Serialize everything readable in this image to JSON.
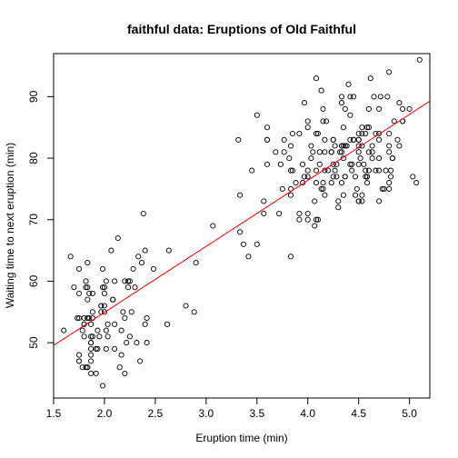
{
  "chart_data": {
    "type": "scatter",
    "title": "faithful data: Eruptions of Old Faithful",
    "xlabel": "Eruption time (min)",
    "ylabel": "Waiting time to next eruption (min)",
    "xlim": [
      1.5,
      5.2
    ],
    "ylim": [
      41,
      97
    ],
    "x_ticks": [
      "1.5",
      "2.0",
      "2.5",
      "3.0",
      "3.5",
      "4.0",
      "4.5",
      "5.0"
    ],
    "y_ticks": [
      "50",
      "60",
      "70",
      "80",
      "90"
    ],
    "grid": false,
    "point_color": "#000000",
    "line_color": "#ff0000",
    "regression_line": {
      "intercept": 33.47,
      "slope": 10.73
    },
    "series": [
      {
        "x": [
          3.6,
          1.8,
          3.333,
          2.283,
          4.533,
          2.883,
          4.7,
          3.6,
          1.95,
          4.35,
          1.833,
          3.917,
          4.2,
          1.75,
          4.7,
          2.167,
          1.75,
          4.8,
          1.6,
          4.25,
          1.8,
          1.75,
          3.45,
          3.067,
          4.533,
          3.6,
          1.967,
          4.083,
          3.85,
          4.433,
          4.3,
          4.467,
          3.367,
          4.033,
          3.833,
          2.017,
          1.867,
          4.833,
          1.833,
          4.783,
          4.35,
          1.883,
          4.567,
          1.75,
          4.533,
          3.317,
          3.833,
          2.1,
          4.633,
          2,
          4.8,
          4.716,
          1.833,
          4.833,
          1.733,
          4.883,
          3.717,
          1.667,
          4.567,
          4.317,
          2.233,
          4.5,
          1.75,
          4.8,
          1.817,
          4.4,
          4.167,
          4.7,
          2.067,
          4.7,
          4.033,
          1.967,
          4.5,
          4,
          1.983,
          5.067,
          2.017,
          4.567,
          3.883,
          3.6,
          4.133,
          4.333,
          4.1,
          2.633,
          4.067,
          4.933,
          3.95,
          4.517,
          2.167,
          4,
          2.2,
          4.333,
          1.867,
          4.817,
          1.833,
          4.3,
          4.667,
          3.75,
          1.867,
          4.9,
          2.483,
          4.367,
          2.1,
          4.5,
          4.05,
          1.867,
          4.7,
          1.783,
          4.85,
          3.683,
          4.733,
          2.3,
          4.9,
          4.417,
          1.7,
          4.633,
          2.317,
          4.6,
          1.817,
          4.417,
          2.617,
          4.067,
          4.25,
          1.967,
          4.6,
          3.767,
          1.917,
          4.5,
          2.267,
          4.65,
          1.867,
          4.167,
          2.8,
          4.333,
          1.833,
          4.383,
          1.883,
          4.933,
          2.033,
          3.733,
          4.233,
          2.233,
          4.533,
          4.817,
          4.333,
          1.983,
          4.633,
          2.017,
          5.1,
          1.8,
          5.033,
          4,
          2.4,
          4.6,
          3.567,
          4,
          4.5,
          4.083,
          1.8,
          3.967,
          2.2,
          4.15,
          2,
          3.833,
          3.5,
          4.583,
          2.367,
          5,
          1.933,
          4.617,
          1.917,
          2.083,
          4.583,
          3.333,
          4.167,
          4.333,
          4.5,
          2.417,
          4,
          4.167,
          1.883,
          4.583,
          4.25,
          3.767,
          2.033,
          4.433,
          4.083,
          1.833,
          4.417,
          2.183,
          4.8,
          1.833,
          4.8,
          4.1,
          3.966,
          4.233,
          3.5,
          4.366,
          2.25,
          4.667,
          2.1,
          4.35,
          4.133,
          1.867,
          4.6,
          1.783,
          4.367,
          3.85,
          1.933,
          4.5,
          2.383,
          4.7,
          1.867,
          3.833,
          3.417,
          4.233,
          2.4,
          4.8,
          2,
          4.15,
          1.867,
          4.267,
          1.75,
          4.483,
          4,
          4.117,
          4.083,
          4.267,
          3.917,
          4.55,
          4.083,
          2.417,
          4.183,
          2.217,
          4.45,
          1.883,
          1.85,
          4.283,
          3.95,
          2.333,
          4.15,
          2.35,
          4.933,
          2.9,
          4.583,
          3.833,
          2.083,
          4.367,
          2.133,
          4.35,
          2.2,
          4.45,
          3.567,
          4.5,
          4.15,
          3.817,
          3.917,
          4.45,
          2,
          4.283,
          4.767,
          4.533,
          1.85,
          4.25,
          1.983,
          2.25,
          4.75,
          4.117,
          2.15,
          4.417,
          1.817,
          4.467
        ],
        "y": [
          79,
          54,
          74,
          62,
          85,
          55,
          88,
          85,
          51,
          85,
          54,
          84,
          78,
          47,
          83,
          52,
          62,
          84,
          52,
          79,
          51,
          47,
          78,
          69,
          74,
          83,
          55,
          76,
          78,
          79,
          73,
          77,
          66,
          80,
          74,
          52,
          48,
          80,
          59,
          90,
          80,
          58,
          84,
          58,
          73,
          83,
          64,
          53,
          82,
          59,
          75,
          90,
          54,
          80,
          54,
          83,
          71,
          64,
          77,
          81,
          59,
          84,
          48,
          82,
          60,
          92,
          78,
          78,
          65,
          73,
          82,
          56,
          79,
          71,
          62,
          76,
          60,
          78,
          76,
          83,
          75,
          82,
          70,
          65,
          73,
          88,
          76,
          80,
          48,
          86,
          60,
          90,
          50,
          78,
          63,
          72,
          84,
          75,
          51,
          82,
          62,
          88,
          49,
          83,
          81,
          47,
          84,
          52,
          86,
          81,
          75,
          59,
          89,
          79,
          59,
          81,
          50,
          85,
          59,
          87,
          53,
          69,
          77,
          56,
          88,
          81,
          45,
          82,
          55,
          90,
          45,
          83,
          56,
          89,
          46,
          82,
          51,
          86,
          53,
          79,
          81,
          60,
          82,
          77,
          76,
          59,
          80,
          49,
          96,
          53,
          77,
          77,
          65,
          81,
          71,
          70,
          81,
          93,
          53,
          89,
          45,
          86,
          58,
          78,
          66,
          76,
          63,
          88,
          52,
          93,
          49,
          57,
          77,
          68,
          81,
          81,
          73,
          50,
          85,
          74,
          55,
          77,
          83,
          83,
          51,
          78,
          84,
          46,
          83,
          55,
          81,
          57,
          76,
          84,
          77,
          81,
          87,
          77,
          51,
          78,
          60,
          82,
          91,
          53,
          78,
          46,
          77,
          84,
          49,
          83,
          71,
          80,
          49,
          75,
          64,
          76,
          53,
          94,
          55,
          76,
          50,
          82,
          54,
          75,
          78,
          79,
          78,
          78,
          70,
          79,
          70,
          54,
          86,
          50,
          90,
          54,
          54,
          77,
          79,
          64,
          75,
          47,
          86,
          63,
          85,
          82,
          57,
          82,
          67,
          74,
          54,
          83,
          73,
          73,
          88,
          80,
          71,
          83,
          56,
          79,
          78,
          84,
          58,
          83,
          43,
          60,
          75,
          81,
          46,
          90,
          46,
          74
        ]
      }
    ]
  }
}
